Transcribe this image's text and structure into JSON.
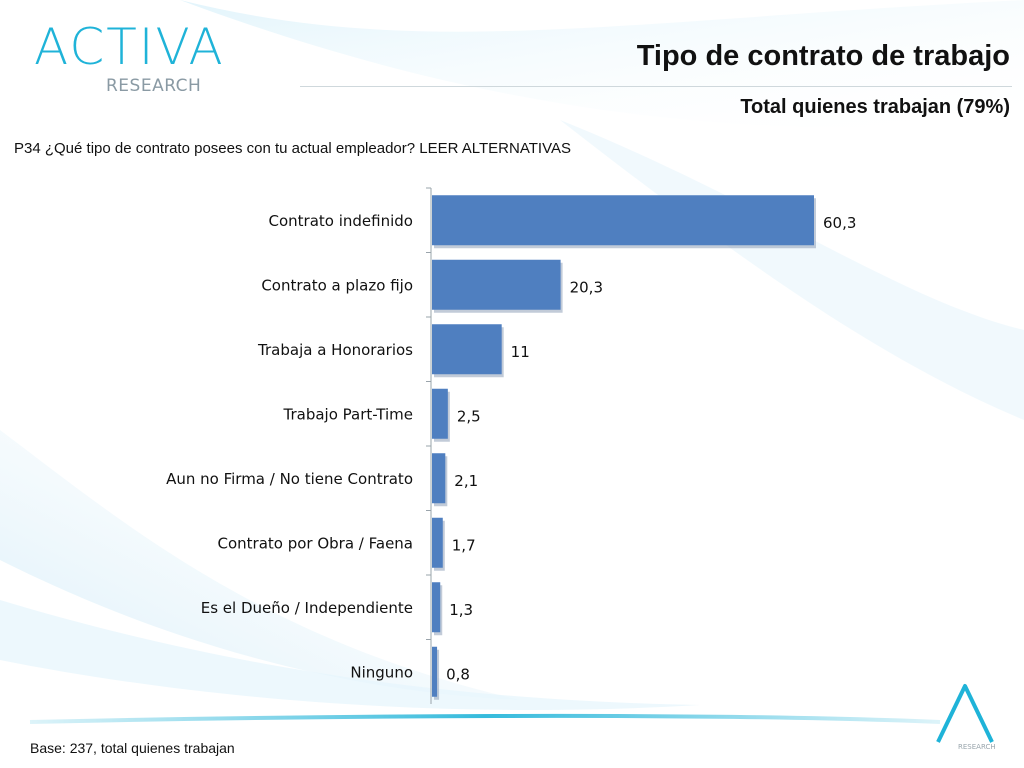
{
  "branding": {
    "logo_main": "ACTIVA",
    "logo_sub": "RESEARCH",
    "footer_logo_sub": "RESEARCH"
  },
  "header": {
    "title": "Tipo de contrato de trabajo",
    "subtitle": "Total quienes trabajan (79%)"
  },
  "question": "P34 ¿Qué tipo de contrato posees con tu actual empleador? LEER ALTERNATIVAS",
  "footer": {
    "base": "Base: 237, total quienes trabajan"
  },
  "colors": {
    "bar": "#4f7fc0",
    "bar_shadow": "#8fa0b8",
    "accent": "#1fb3d8",
    "text": "#111111"
  },
  "chart_data": {
    "type": "bar",
    "orientation": "horizontal",
    "categories": [
      "Contrato indefinido",
      "Contrato a plazo fijo",
      "Trabaja a Honorarios",
      "Trabajo Part-Time",
      "Aun no Firma / No tiene Contrato",
      "Contrato por Obra / Faena",
      "Es el Dueño / Independiente",
      "Ninguno"
    ],
    "values": [
      60.3,
      20.3,
      11,
      2.5,
      2.1,
      1.7,
      1.3,
      0.8
    ],
    "value_labels": [
      "60,3",
      "20,3",
      "11",
      "2,5",
      "2,1",
      "1,7",
      "1,3",
      "0,8"
    ],
    "xlim": [
      0,
      60.3
    ],
    "grid": false,
    "legend": "none"
  }
}
